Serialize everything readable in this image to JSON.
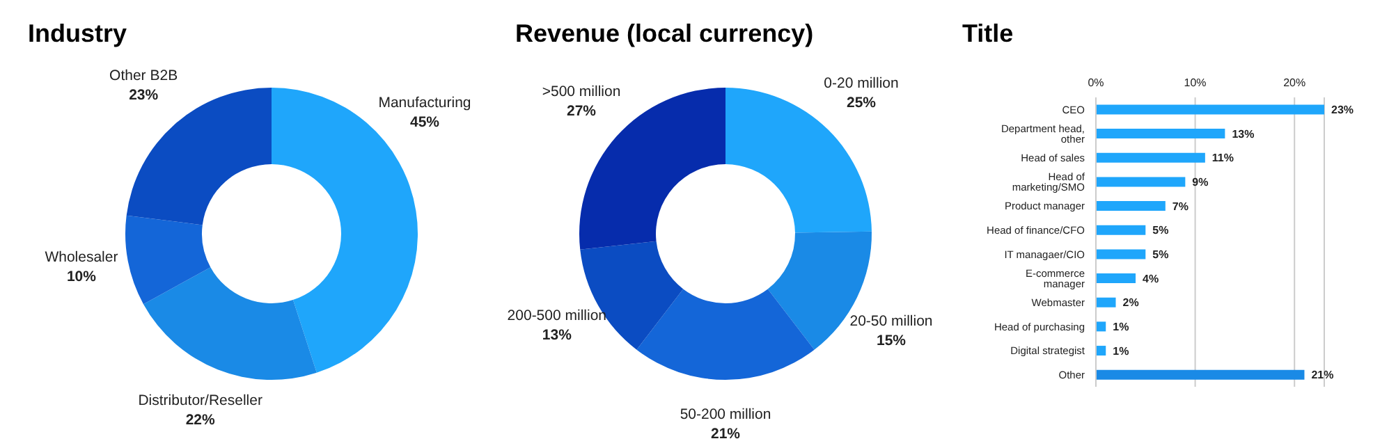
{
  "chart_data": [
    {
      "type": "donut",
      "title": "Industry",
      "categories": [
        "Manufacturing",
        "Distributor/Reseller",
        "Wholesaler",
        "Other B2B"
      ],
      "values": [
        45,
        22,
        10,
        23
      ],
      "value_labels": [
        "45%",
        "22%",
        "10%",
        "23%"
      ],
      "colors": [
        "#1fa6fb",
        "#1a8ae6",
        "#1466d8",
        "#0b4cc2"
      ],
      "legend": false
    },
    {
      "type": "donut",
      "title": "Revenue (local currency)",
      "categories": [
        "0-20 million",
        "20-50 million",
        "50-200 million",
        "200-500 million",
        ">500 million"
      ],
      "values": [
        25,
        15,
        21,
        13,
        27
      ],
      "value_labels": [
        "25%",
        "15%",
        "21%",
        "13%",
        "27%"
      ],
      "colors": [
        "#1fa6fb",
        "#1a8ae6",
        "#1466d8",
        "#0b4cc2",
        "#062cac"
      ],
      "legend": false
    },
    {
      "type": "bar",
      "orientation": "horizontal",
      "title": "Title",
      "categories": [
        "CEO",
        "Department head, other",
        "Head of sales",
        "Head of marketing/SMO",
        "Product manager",
        "Head of finance/CFO",
        "IT managaer/CIO",
        "E-commerce manager",
        "Webmaster",
        "Head of purchasing",
        "Digital strategist",
        "Other"
      ],
      "values": [
        23,
        13,
        11,
        9,
        7,
        5,
        5,
        4,
        2,
        1,
        1,
        21
      ],
      "value_labels": [
        "23%",
        "13%",
        "11%",
        "9%",
        "7%",
        "5%",
        "5%",
        "4%",
        "2%",
        "1%",
        "1%",
        "21%"
      ],
      "colors": [
        "#1fa6fb",
        "#1fa6fb",
        "#1fa6fb",
        "#1fa6fb",
        "#1fa6fb",
        "#1fa6fb",
        "#1fa6fb",
        "#1fa6fb",
        "#1fa6fb",
        "#1fa6fb",
        "#1fa6fb",
        "#1a8ae6"
      ],
      "xlim": [
        0,
        23
      ],
      "xticks": [
        {
          "value": 0,
          "label": "0%"
        },
        {
          "value": 10,
          "label": "10%"
        },
        {
          "value": 20,
          "label": "20%"
        }
      ],
      "grid": "x",
      "legend": false
    }
  ]
}
